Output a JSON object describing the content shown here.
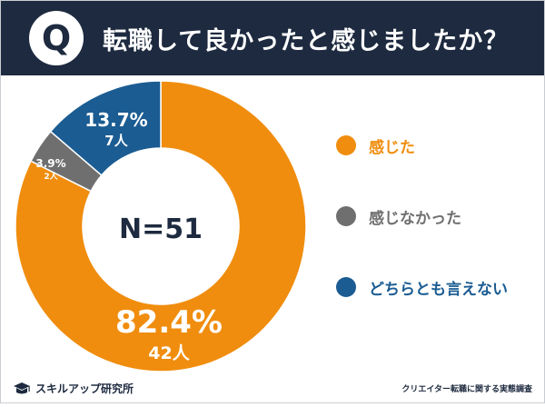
{
  "header": {
    "badge_letter": "Q",
    "title": "転職して良かったと感じましたか？"
  },
  "chart_data": {
    "type": "pie",
    "variant": "donut",
    "center_label": "N=51",
    "categories": [
      "感じた",
      "感じなかった",
      "どちらとも言えない"
    ],
    "values": [
      82.4,
      3.9,
      13.7
    ],
    "counts": [
      "42人",
      "2人",
      "7人"
    ],
    "percent_labels": [
      "82.4%",
      "3.9%",
      "13.7%"
    ],
    "colors": [
      "#f08d0e",
      "#6f6f6f",
      "#1b5c92"
    ],
    "legend_position": "right"
  },
  "footer": {
    "brand": "スキルアップ研究所",
    "source": "クリエイター転職に関する実態調査"
  }
}
